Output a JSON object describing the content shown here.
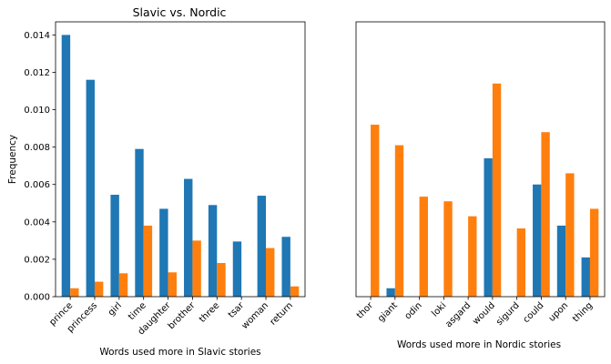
{
  "chart_data": [
    {
      "type": "bar",
      "title": "Slavic vs. Nordic",
      "xlabel": "Words used more in Slavic stories",
      "ylabel": "Frequency",
      "ylim": [
        0,
        0.0147
      ],
      "yticks": [
        "0.000",
        "0.002",
        "0.004",
        "0.006",
        "0.008",
        "0.010",
        "0.012",
        "0.014"
      ],
      "categories": [
        "prince",
        "princess",
        "girl",
        "time",
        "daughter",
        "brother",
        "three",
        "tsar",
        "woman",
        "return"
      ],
      "series": [
        {
          "color": "#1f77b4",
          "values": [
            0.014,
            0.0116,
            0.00545,
            0.0079,
            0.0047,
            0.0063,
            0.0049,
            0.00295,
            0.0054,
            0.0032
          ]
        },
        {
          "color": "#ff7f0e",
          "values": [
            0.00045,
            0.0008,
            0.00125,
            0.0038,
            0.0013,
            0.003,
            0.0018,
            0.0,
            0.0026,
            0.00055
          ]
        }
      ]
    },
    {
      "type": "bar",
      "title": "",
      "xlabel": "Words used more in Nordic stories",
      "ylabel": "",
      "ylim": [
        0,
        0.0147
      ],
      "categories": [
        "thor",
        "giant",
        "odin",
        "loki",
        "asgard",
        "would",
        "sigurd",
        "could",
        "upon",
        "thing"
      ],
      "series": [
        {
          "color": "#1f77b4",
          "values": [
            0.0,
            0.00045,
            0.0,
            0.0,
            0.0,
            0.0074,
            0.0,
            0.006,
            0.0038,
            0.0021
          ]
        },
        {
          "color": "#ff7f0e",
          "values": [
            0.0092,
            0.0081,
            0.00535,
            0.0051,
            0.0043,
            0.0114,
            0.00365,
            0.0088,
            0.0066,
            0.0047
          ]
        }
      ]
    }
  ]
}
